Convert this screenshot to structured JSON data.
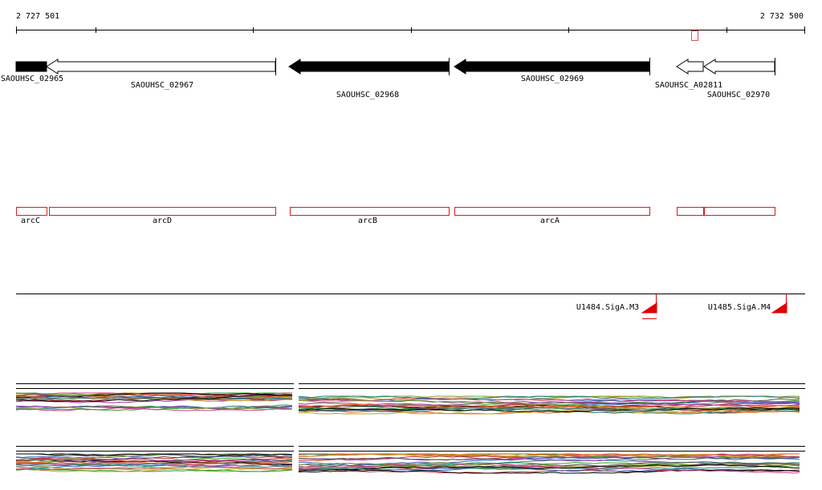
{
  "ruler": {
    "start": "2 727 501",
    "end": "2 732 500"
  },
  "genes": [
    {
      "label": "SAOUHSC_02965"
    },
    {
      "label": "SAOUHSC_02967"
    },
    {
      "label": "SAOUHSC_02968"
    },
    {
      "label": "SAOUHSC_02969"
    },
    {
      "label": "SAOUHSC_A02811"
    },
    {
      "label": "SAOUHSC_02970"
    }
  ],
  "features": [
    {
      "label": "arcC"
    },
    {
      "label": "arcD"
    },
    {
      "label": "arcB"
    },
    {
      "label": "arcA"
    }
  ],
  "promoters": [
    {
      "label": "U1484.SigA.M3"
    },
    {
      "label": "U1485.SigA.M4"
    }
  ]
}
